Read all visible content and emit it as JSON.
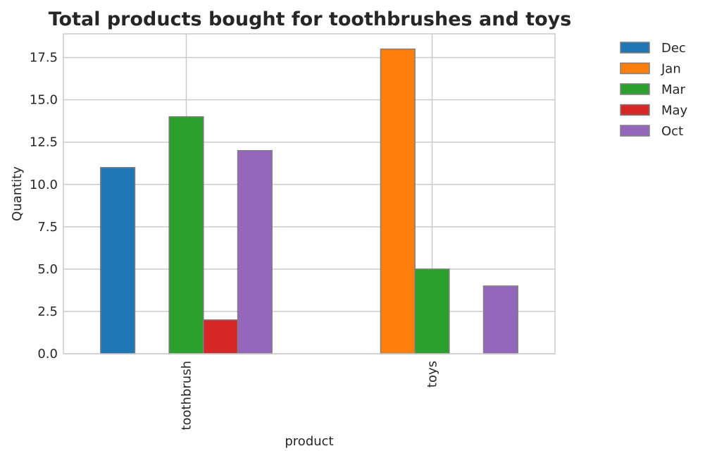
{
  "chart_data": {
    "type": "bar",
    "title": "Total products bought for toothbrushes and toys",
    "xlabel": "product",
    "ylabel": "Quantity",
    "categories": [
      "toothbrush",
      "toys"
    ],
    "series": [
      {
        "name": "Dec",
        "color": "#1f77b4",
        "values": [
          11,
          0
        ]
      },
      {
        "name": "Jan",
        "color": "#ff7f0e",
        "values": [
          0,
          18
        ]
      },
      {
        "name": "Mar",
        "color": "#2ca02c",
        "values": [
          14,
          5
        ]
      },
      {
        "name": "May",
        "color": "#d62728",
        "values": [
          2,
          0
        ]
      },
      {
        "name": "Oct",
        "color": "#9467bd",
        "values": [
          12,
          4
        ]
      }
    ],
    "ylim": [
      0,
      18.9
    ],
    "yticks": [
      "0.0",
      "2.5",
      "5.0",
      "7.5",
      "10.0",
      "12.5",
      "15.0",
      "17.5"
    ],
    "grid": true,
    "legend_position": "outside-right"
  }
}
